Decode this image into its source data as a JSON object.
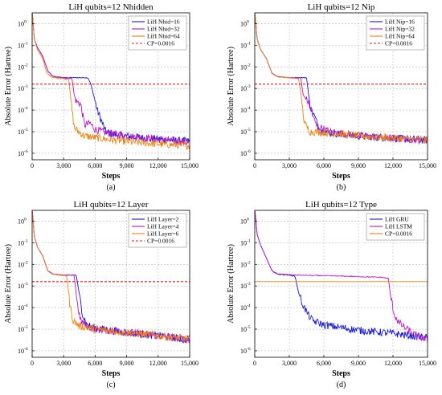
{
  "chart_data": [
    {
      "type": "line",
      "title": "LiH qubits=12 Nhidden",
      "xlabel": "Steps",
      "ylabel": "Absolute Error (Hartree)",
      "caption": "(a)",
      "y_scale": "log",
      "xlim": [
        0,
        15000
      ],
      "ylim_exp": [
        -6.3,
        0.5
      ],
      "x_ticks": [
        0,
        3000,
        6000,
        9000,
        12000,
        15000
      ],
      "x_tick_labels": [
        "0",
        "3,000",
        "6,000",
        "9,000",
        "12,000",
        "15,000"
      ],
      "y_ticks_exp": [
        -6,
        -5,
        -4,
        -3,
        -2,
        -1,
        0
      ],
      "y_tick_labels": [
        "10",
        "10",
        "10",
        "10",
        "10",
        "10",
        "10"
      ],
      "y_tick_exponents": [
        "-6",
        "-5",
        "-4",
        "-3",
        "-2",
        "-1",
        "0"
      ],
      "grid": true,
      "legend_position": "top-right",
      "series": [
        {
          "name": "LiH Nhid=16",
          "color": "#1515d8",
          "style": "solid",
          "points": [
            [
              0,
              0.6
            ],
            [
              200,
              -0.7
            ],
            [
              500,
              -1.1
            ],
            [
              1000,
              -1.5
            ],
            [
              1500,
              -2.2
            ],
            [
              2000,
              -2.45
            ],
            [
              3000,
              -2.5
            ],
            [
              4000,
              -2.5
            ],
            [
              5000,
              -2.5
            ],
            [
              5300,
              -2.5
            ],
            [
              5600,
              -2.8
            ],
            [
              5900,
              -3.4
            ],
            [
              6200,
              -4.0
            ],
            [
              6600,
              -4.5
            ],
            [
              7000,
              -5.0
            ],
            [
              8000,
              -5.15
            ],
            [
              10000,
              -5.25
            ],
            [
              12000,
              -5.35
            ],
            [
              15000,
              -5.45
            ]
          ]
        },
        {
          "name": "LiH Nhid=32",
          "color": "#b818c8",
          "style": "solid",
          "points": [
            [
              0,
              0.6
            ],
            [
              200,
              -0.7
            ],
            [
              500,
              -1.1
            ],
            [
              1000,
              -1.5
            ],
            [
              1500,
              -2.2
            ],
            [
              2000,
              -2.45
            ],
            [
              3000,
              -2.5
            ],
            [
              3800,
              -2.55
            ],
            [
              4000,
              -3.3
            ],
            [
              4200,
              -3.6
            ],
            [
              4600,
              -3.7
            ],
            [
              5000,
              -4.7
            ],
            [
              5500,
              -4.6
            ],
            [
              6000,
              -4.9
            ],
            [
              7000,
              -5.05
            ],
            [
              9000,
              -5.2
            ],
            [
              12000,
              -5.35
            ],
            [
              15000,
              -5.5
            ]
          ]
        },
        {
          "name": "LiH Nhid=64",
          "color": "#f0820f",
          "style": "solid",
          "points": [
            [
              0,
              0.6
            ],
            [
              200,
              -0.7
            ],
            [
              500,
              -1.2
            ],
            [
              1000,
              -1.6
            ],
            [
              1400,
              -2.3
            ],
            [
              2000,
              -2.5
            ],
            [
              3000,
              -2.55
            ],
            [
              3500,
              -2.6
            ],
            [
              3700,
              -3.6
            ],
            [
              4000,
              -4.8
            ],
            [
              4400,
              -5.0
            ],
            [
              5000,
              -5.2
            ],
            [
              7000,
              -5.35
            ],
            [
              10000,
              -5.5
            ],
            [
              13000,
              -5.6
            ],
            [
              15000,
              -5.65
            ]
          ]
        },
        {
          "name": "CP=0.0016",
          "color": "#e81818",
          "style": "dashed",
          "points": [
            [
              0,
              -2.8
            ],
            [
              15000,
              -2.8
            ]
          ]
        }
      ]
    },
    {
      "type": "line",
      "title": "LiH qubits=12 Nip",
      "xlabel": "Steps",
      "ylabel": "Absolute Error (Hartree)",
      "caption": "(b)",
      "y_scale": "log",
      "xlim": [
        0,
        15000
      ],
      "ylim_exp": [
        -6.3,
        0.5
      ],
      "x_ticks": [
        0,
        3000,
        6000,
        9000,
        12000,
        15000
      ],
      "x_tick_labels": [
        "0",
        "3,000",
        "6,000",
        "9,000",
        "12,000",
        "15,000"
      ],
      "y_ticks_exp": [
        -6,
        -5,
        -4,
        -3,
        -2,
        -1,
        0
      ],
      "y_tick_labels": [
        "10",
        "10",
        "10",
        "10",
        "10",
        "10",
        "10"
      ],
      "y_tick_exponents": [
        "-6",
        "-5",
        "-4",
        "-3",
        "-2",
        "-1",
        "0"
      ],
      "grid": true,
      "legend_position": "top-right",
      "series": [
        {
          "name": "LiH Nip=16",
          "color": "#1515d8",
          "style": "solid",
          "points": [
            [
              0,
              0.6
            ],
            [
              200,
              -0.7
            ],
            [
              500,
              -1.2
            ],
            [
              1000,
              -1.6
            ],
            [
              1500,
              -2.3
            ],
            [
              2000,
              -2.45
            ],
            [
              3000,
              -2.5
            ],
            [
              4500,
              -2.5
            ],
            [
              4700,
              -3.4
            ],
            [
              4900,
              -4.0
            ],
            [
              5200,
              -4.3
            ],
            [
              5600,
              -4.9
            ],
            [
              6500,
              -5.05
            ],
            [
              9000,
              -5.2
            ],
            [
              12000,
              -5.3
            ],
            [
              15000,
              -5.4
            ]
          ]
        },
        {
          "name": "LiH Nip=32",
          "color": "#b818c8",
          "style": "solid",
          "points": [
            [
              0,
              0.6
            ],
            [
              200,
              -0.7
            ],
            [
              500,
              -1.2
            ],
            [
              1000,
              -1.6
            ],
            [
              1500,
              -2.3
            ],
            [
              2000,
              -2.45
            ],
            [
              3000,
              -2.5
            ],
            [
              4000,
              -2.5
            ],
            [
              4200,
              -3.3
            ],
            [
              4600,
              -3.6
            ],
            [
              5000,
              -4.1
            ],
            [
              5300,
              -4.7
            ],
            [
              6500,
              -5.0
            ],
            [
              9000,
              -5.2
            ],
            [
              12000,
              -5.3
            ],
            [
              15000,
              -5.4
            ]
          ]
        },
        {
          "name": "LiH Nip=64",
          "color": "#f0820f",
          "style": "solid",
          "points": [
            [
              0,
              0.6
            ],
            [
              200,
              -0.7
            ],
            [
              500,
              -1.2
            ],
            [
              1000,
              -1.6
            ],
            [
              1500,
              -2.3
            ],
            [
              2000,
              -2.45
            ],
            [
              3000,
              -2.5
            ],
            [
              3800,
              -2.55
            ],
            [
              4000,
              -3.2
            ],
            [
              4300,
              -4.6
            ],
            [
              4800,
              -5.0
            ],
            [
              6500,
              -5.05
            ],
            [
              9000,
              -5.2
            ],
            [
              12000,
              -5.3
            ],
            [
              15000,
              -5.4
            ]
          ]
        },
        {
          "name": "CP=0.0016",
          "color": "#e81818",
          "style": "dashed",
          "points": [
            [
              0,
              -2.8
            ],
            [
              15000,
              -2.8
            ]
          ]
        }
      ]
    },
    {
      "type": "line",
      "title": "LiH qubits=12 Layer",
      "xlabel": "Steps",
      "ylabel": "Absolute Error (Hartree)",
      "caption": "(c)",
      "y_scale": "log",
      "xlim": [
        0,
        15000
      ],
      "ylim_exp": [
        -6.3,
        0.5
      ],
      "x_ticks": [
        0,
        3000,
        6000,
        9000,
        12000,
        15000
      ],
      "x_tick_labels": [
        "0",
        "3,000",
        "6,000",
        "9,000",
        "12,000",
        "15,000"
      ],
      "y_ticks_exp": [
        -6,
        -5,
        -4,
        -3,
        -2,
        -1,
        0
      ],
      "y_tick_labels": [
        "10",
        "10",
        "10",
        "10",
        "10",
        "10",
        "10"
      ],
      "y_tick_exponents": [
        "-6",
        "-5",
        "-4",
        "-3",
        "-2",
        "-1",
        "0"
      ],
      "grid": true,
      "legend_position": "top-right",
      "series": [
        {
          "name": "LiH Layer=2",
          "color": "#1515d8",
          "style": "solid",
          "points": [
            [
              0,
              0.6
            ],
            [
              200,
              -0.7
            ],
            [
              500,
              -1.2
            ],
            [
              1000,
              -1.6
            ],
            [
              1500,
              -2.3
            ],
            [
              2000,
              -2.45
            ],
            [
              3000,
              -2.5
            ],
            [
              4200,
              -2.5
            ],
            [
              4500,
              -3.4
            ],
            [
              4800,
              -4.3
            ],
            [
              5200,
              -4.8
            ],
            [
              6000,
              -4.95
            ],
            [
              9000,
              -5.15
            ],
            [
              12000,
              -5.3
            ],
            [
              15000,
              -5.5
            ]
          ]
        },
        {
          "name": "LiH Layer=4",
          "color": "#b818c8",
          "style": "solid",
          "points": [
            [
              0,
              0.6
            ],
            [
              200,
              -0.7
            ],
            [
              500,
              -1.2
            ],
            [
              1000,
              -1.6
            ],
            [
              1500,
              -2.3
            ],
            [
              2000,
              -2.45
            ],
            [
              3000,
              -2.5
            ],
            [
              4000,
              -2.5
            ],
            [
              4300,
              -3.8
            ],
            [
              4600,
              -4.6
            ],
            [
              5200,
              -4.85
            ],
            [
              6000,
              -5.0
            ],
            [
              9000,
              -5.15
            ],
            [
              12000,
              -5.3
            ],
            [
              15000,
              -5.5
            ]
          ]
        },
        {
          "name": "LiH Layer=6",
          "color": "#f0820f",
          "style": "solid",
          "points": [
            [
              0,
              0.6
            ],
            [
              200,
              -0.7
            ],
            [
              500,
              -1.2
            ],
            [
              1000,
              -1.6
            ],
            [
              1500,
              -2.3
            ],
            [
              2000,
              -2.45
            ],
            [
              2800,
              -2.5
            ],
            [
              3300,
              -2.55
            ],
            [
              3600,
              -3.9
            ],
            [
              3900,
              -4.6
            ],
            [
              4500,
              -4.85
            ],
            [
              6000,
              -5.0
            ],
            [
              9000,
              -5.15
            ],
            [
              12000,
              -5.3
            ],
            [
              15000,
              -5.45
            ]
          ]
        },
        {
          "name": "CP=0.0016",
          "color": "#e81818",
          "style": "dashed",
          "points": [
            [
              0,
              -2.8
            ],
            [
              15000,
              -2.8
            ]
          ]
        }
      ]
    },
    {
      "type": "line",
      "title": "LiH qubits=12 Type",
      "xlabel": "Steps",
      "ylabel": "Absolute Error (Hartree)",
      "caption": "(d)",
      "y_scale": "log",
      "xlim": [
        0,
        15000
      ],
      "ylim_exp": [
        -6.3,
        0.5
      ],
      "x_ticks": [
        0,
        3000,
        6000,
        9000,
        12000,
        15000
      ],
      "x_tick_labels": [
        "0",
        "3,000",
        "6,000",
        "9,000",
        "12,000",
        "15,000"
      ],
      "y_ticks_exp": [
        -6,
        -5,
        -4,
        -3,
        -2,
        -1,
        0
      ],
      "y_tick_labels": [
        "10",
        "10",
        "10",
        "10",
        "10",
        "10",
        "10"
      ],
      "y_tick_exponents": [
        "-6",
        "-5",
        "-4",
        "-3",
        "-2",
        "-1",
        "0"
      ],
      "grid": true,
      "legend_position": "top-right",
      "series": [
        {
          "name": "LiH GRU",
          "color": "#1515d8",
          "style": "solid",
          "points": [
            [
              0,
              0.6
            ],
            [
              200,
              -0.6
            ],
            [
              500,
              -1.1
            ],
            [
              1000,
              -1.7
            ],
            [
              1500,
              -2.3
            ],
            [
              2000,
              -2.45
            ],
            [
              3000,
              -2.5
            ],
            [
              3500,
              -2.55
            ],
            [
              3800,
              -3.3
            ],
            [
              4200,
              -3.9
            ],
            [
              4600,
              -4.3
            ],
            [
              5000,
              -4.6
            ],
            [
              6000,
              -4.8
            ],
            [
              9000,
              -5.05
            ],
            [
              12000,
              -5.2
            ],
            [
              15000,
              -5.4
            ]
          ]
        },
        {
          "name": "LiH LSTM",
          "color": "#b818c8",
          "style": "solid",
          "points": [
            [
              0,
              0.6
            ],
            [
              200,
              -0.6
            ],
            [
              500,
              -1.1
            ],
            [
              1000,
              -1.7
            ],
            [
              1500,
              -2.3
            ],
            [
              2000,
              -2.45
            ],
            [
              4000,
              -2.5
            ],
            [
              8000,
              -2.55
            ],
            [
              11000,
              -2.6
            ],
            [
              11600,
              -2.65
            ],
            [
              11800,
              -3.5
            ],
            [
              12100,
              -4.3
            ],
            [
              12500,
              -4.7
            ],
            [
              13200,
              -5.0
            ],
            [
              14000,
              -5.3
            ],
            [
              15000,
              -5.5
            ]
          ]
        },
        {
          "name": "CP=0.0016",
          "color": "#f0820f",
          "style": "solid",
          "points": [
            [
              0,
              -2.8
            ],
            [
              15000,
              -2.8
            ]
          ]
        }
      ]
    }
  ]
}
